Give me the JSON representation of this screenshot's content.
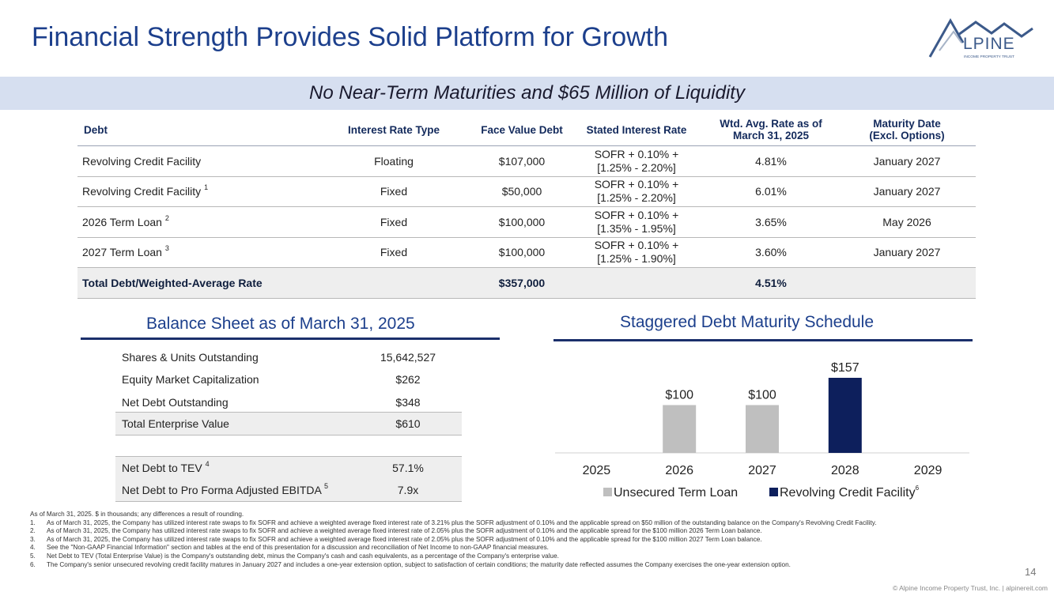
{
  "header": {
    "title": "Financial Strength Provides Solid Platform for Growth",
    "logo_text": "LPINE",
    "logo_letter": "A",
    "logo_tagline": "INCOME PROPERTY TRUST"
  },
  "banner": {
    "text": "No Near-Term Maturities and $65 Million of Liquidity"
  },
  "debt_table": {
    "headers": {
      "debt": "Debt",
      "type": "Interest Rate Type",
      "face": "Face Value Debt",
      "stated": "Stated Interest Rate",
      "wtd_1": "Wtd. Avg. Rate as of",
      "wtd_2": "March 31, 2025",
      "mat_1": "Maturity Date",
      "mat_2": "(Excl. Options)"
    },
    "rows": [
      {
        "name": "Revolving Credit Facility",
        "note": "",
        "type": "Floating",
        "face": "$107,000",
        "rate_1": "SOFR + 0.10% +",
        "rate_2": "[1.25% - 2.20%]",
        "wtd": "4.81%",
        "maturity": "January 2027"
      },
      {
        "name": "Revolving Credit Facility",
        "note": "1",
        "type": "Fixed",
        "face": "$50,000",
        "rate_1": "SOFR + 0.10% +",
        "rate_2": "[1.25% - 2.20%]",
        "wtd": "6.01%",
        "maturity": "January 2027"
      },
      {
        "name": "2026 Term Loan",
        "note": "2",
        "type": "Fixed",
        "face": "$100,000",
        "rate_1": "SOFR + 0.10% +",
        "rate_2": "[1.35% - 1.95%]",
        "wtd": "3.65%",
        "maturity": "May 2026"
      },
      {
        "name": "2027 Term Loan",
        "note": "3",
        "type": "Fixed",
        "face": "$100,000",
        "rate_1": "SOFR + 0.10% +",
        "rate_2": "[1.25% - 1.90%]",
        "wtd": "3.60%",
        "maturity": "January 2027"
      }
    ],
    "total": {
      "name": "Total Debt/Weighted-Average Rate",
      "face": "$357,000",
      "wtd": "4.51%"
    }
  },
  "balance_sheet": {
    "title": "Balance Sheet as of March 31, 2025",
    "rows": [
      {
        "label": "Shares & Units Outstanding",
        "note": "",
        "value": "15,642,527"
      },
      {
        "label": "Equity Market Capitalization",
        "note": "",
        "value": "$262"
      },
      {
        "label": "Net Debt Outstanding",
        "note": "",
        "value": "$348"
      },
      {
        "label": "Total Enterprise Value",
        "note": "",
        "value": "$610"
      },
      {
        "label": "Net Debt to TEV",
        "note": "4",
        "value": "57.1%"
      },
      {
        "label": "Net Debt to Pro Forma Adjusted EBITDA",
        "note": "5",
        "value": "7.9x"
      }
    ]
  },
  "chart_data": {
    "type": "bar",
    "title": "Staggered Debt Maturity Schedule",
    "categories": [
      "2025",
      "2026",
      "2027",
      "2028",
      "2029"
    ],
    "series": [
      {
        "name": "Unsecured Term Loan",
        "color": "#bfbfbf",
        "values": [
          0,
          100,
          100,
          0,
          0
        ]
      },
      {
        "name": "Revolving Credit Facility",
        "note": "6",
        "color": "#0d1f5c",
        "values": [
          0,
          0,
          0,
          157,
          0
        ]
      }
    ],
    "data_labels": [
      "",
      "$100",
      "$100",
      "$157",
      ""
    ],
    "ylim": [
      0,
      170
    ],
    "xlabel": "",
    "ylabel": "",
    "legend": "bottom"
  },
  "footnotes": {
    "intro": "As of March 31, 2025. $ in thousands; any differences a result of rounding.",
    "items": [
      {
        "num": "1.",
        "text": "As of March 31, 2025, the Company has utilized interest rate swaps to fix SOFR and achieve a weighted average fixed interest rate of 3.21% plus the SOFR adjustment of 0.10% and the applicable spread on $50 million of the outstanding balance on the Company's Revolving Credit Facility."
      },
      {
        "num": "2.",
        "text": "As of March 31, 2025, the Company has utilized interest rate swaps to fix SOFR and achieve a weighted average fixed interest rate of 2.05% plus the SOFR adjustment of 0.10% and the applicable spread for the $100 million 2026 Term Loan balance."
      },
      {
        "num": "3.",
        "text": "As of March 31, 2025, the Company has utilized interest rate swaps to fix SOFR and achieve a weighted average fixed interest rate of 2.05% plus the SOFR adjustment of 0.10% and the applicable spread for the $100 million 2027 Term Loan balance."
      },
      {
        "num": "4.",
        "text": "See the \"Non-GAAP Financial Information\" section and tables at the end of this presentation for a discussion and reconciliation of Net Income to non-GAAP financial measures."
      },
      {
        "num": "5.",
        "text": "Net Debt to TEV (Total Enterprise Value) is the Company's outstanding debt, minus the Company's cash and cash equivalents, as a percentage of the Company's enterprise value."
      },
      {
        "num": "6.",
        "text": "The Company's senior unsecured revolving credit facility matures in January 2027 and includes a one-year extension option, subject to satisfaction of certain conditions; the maturity date reflected assumes the Company exercises the one-year extension option."
      }
    ]
  },
  "page": {
    "number": "14",
    "copyright": "© Alpine Income Property Trust, Inc.  |  alpinereit.com"
  }
}
